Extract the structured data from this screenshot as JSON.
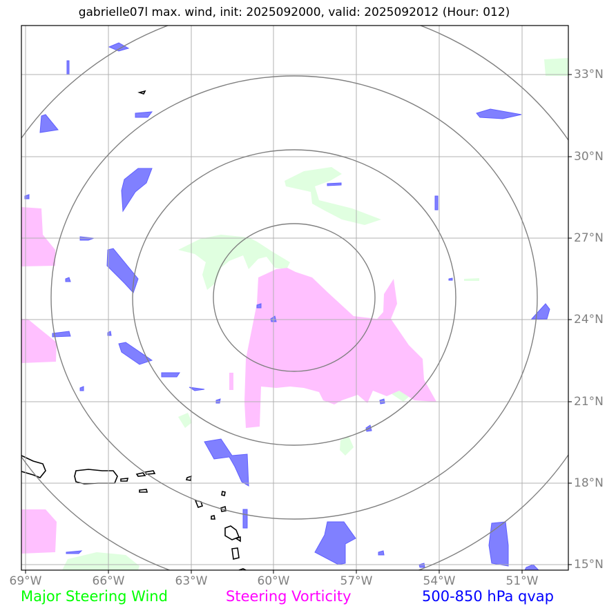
{
  "title": "gabrielle07l max. wind, init: 2025092000, valid: 2025092012 (Hour: 012)",
  "storm": "gabrielle07l",
  "init": "2025092000",
  "valid": "2025092012",
  "forecast_hour": "012",
  "map": {
    "lon_labels": [
      "69°W",
      "66°W",
      "63°W",
      "60°W",
      "57°W",
      "54°W",
      "51°W"
    ],
    "lat_labels": [
      "33°N",
      "30°N",
      "27°N",
      "24°N",
      "21°N",
      "18°N",
      "15°N"
    ],
    "range_rings": 4,
    "colors": {
      "steering_wind": "#00ff00",
      "vorticity_fill": "#ffc0ff",
      "qvap_fill": "#8080ff",
      "wind_fill": "#e0ffe0",
      "grid": "#b0b0b0",
      "rings": "#808080",
      "coast": "#000000"
    }
  },
  "legend": [
    {
      "label": "Major Steering Wind",
      "color": "#00ff00"
    },
    {
      "label": "Steering Vorticity",
      "color": "#ff00ff"
    },
    {
      "label": "500-850 hPa qvap",
      "color": "#0000ff"
    }
  ]
}
